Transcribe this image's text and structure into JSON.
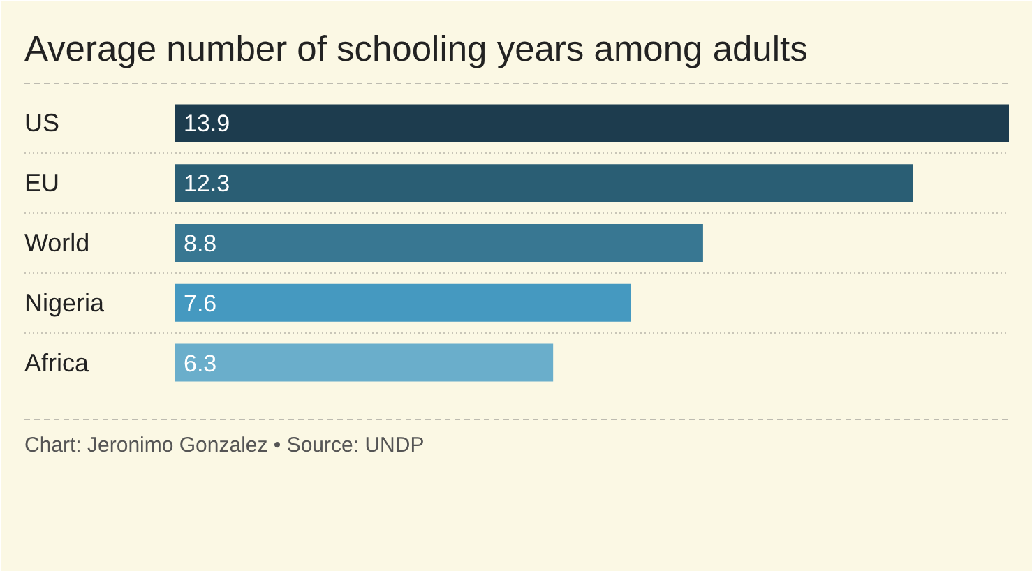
{
  "chart_data": {
    "type": "bar",
    "orientation": "horizontal",
    "title": "Average number of schooling years among adults",
    "categories": [
      "US",
      "EU",
      "World",
      "Nigeria",
      "Africa"
    ],
    "values": [
      13.9,
      12.3,
      8.8,
      7.6,
      6.3
    ],
    "colors": [
      "#1d3c4e",
      "#2a5e74",
      "#387792",
      "#4599c0",
      "#6aaecb"
    ],
    "data_labels": true,
    "grid": "y",
    "annotations": [
      "Chart: Jeronimo Gonzalez • Source: UNDP"
    ]
  }
}
